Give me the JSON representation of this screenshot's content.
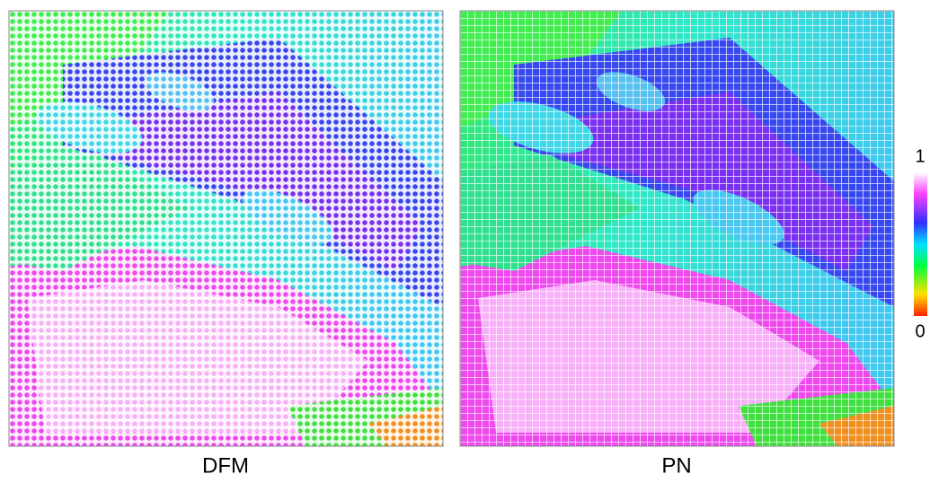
{
  "panels": [
    {
      "label": "DFM"
    },
    {
      "label": "PN"
    }
  ],
  "colorbar": {
    "ticks": [
      0,
      1
    ]
  }
}
